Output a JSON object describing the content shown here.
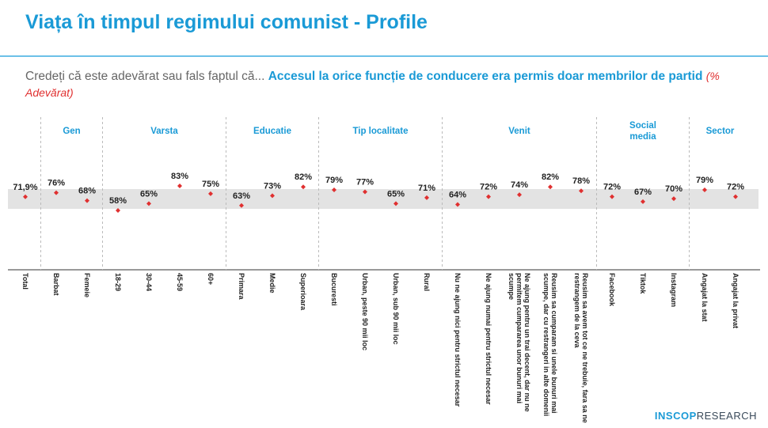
{
  "chart_data": {
    "type": "dot",
    "title": "Viața în timpul regimului comunist - Profile",
    "subtitle": "Credeți că este adevărat sau fals faptul că...",
    "question": "Accesul la orice funcție de conducere era permis doar membrilor de partid",
    "unit_note": "(% Adevărat)",
    "color": "#e03030",
    "groups": [
      {
        "categories": [
          "Total"
        ],
        "values": [
          71.9
        ],
        "value_labels": [
          "71,9%"
        ]
      },
      {
        "name": "Gen",
        "categories": [
          "Barbat",
          "Femeie"
        ],
        "values": [
          76,
          68
        ],
        "value_labels": [
          "76%",
          "68%"
        ]
      },
      {
        "name": "Varsta",
        "categories": [
          "18-29",
          "30-44",
          "45-59",
          "60+"
        ],
        "values": [
          58,
          65,
          83,
          75
        ],
        "value_labels": [
          "58%",
          "65%",
          "83%",
          "75%"
        ]
      },
      {
        "name": "Educatie",
        "categories": [
          "Primara",
          "Medie",
          "Superioara"
        ],
        "values": [
          63,
          73,
          82
        ],
        "value_labels": [
          "63%",
          "73%",
          "82%"
        ]
      },
      {
        "name": "Tip localitate",
        "categories": [
          "Bucuresti",
          "Urban, peste 90 mii loc",
          "Urban, sub 90 mii loc",
          "Rural"
        ],
        "values": [
          79,
          77,
          65,
          71
        ],
        "value_labels": [
          "79%",
          "77%",
          "65%",
          "71%"
        ]
      },
      {
        "name": "Venit",
        "categories": [
          "Nu ne ajung nici pentru strictul necesar",
          "Ne ajung numai pentru strictul necesar",
          "Ne ajung pentru un trai decent, dar nu ne permitem cumpararea unor bunuri mai scumpe",
          "Reusim sa cumparam si unele bunuri mai scumpe, dar cu restrangeri in alte domenii",
          "Reusim sa avem tot ce ne trebuie, fara sa ne restrangem de la ceva"
        ],
        "values": [
          64,
          72,
          74,
          82,
          78
        ],
        "value_labels": [
          "64%",
          "72%",
          "74%",
          "82%",
          "78%"
        ]
      },
      {
        "name": "Social media",
        "categories": [
          "Facebook",
          "Tiktok",
          "Instagram"
        ],
        "values": [
          72,
          67,
          70
        ],
        "value_labels": [
          "72%",
          "67%",
          "70%"
        ]
      },
      {
        "name": "Sector",
        "categories": [
          "Angajat la stat",
          "Angajat la privat"
        ],
        "values": [
          79,
          72
        ],
        "value_labels": [
          "79%",
          "72%"
        ]
      }
    ]
  },
  "brand": {
    "name": "INSCOP",
    "suffix": "RESEARCH"
  }
}
